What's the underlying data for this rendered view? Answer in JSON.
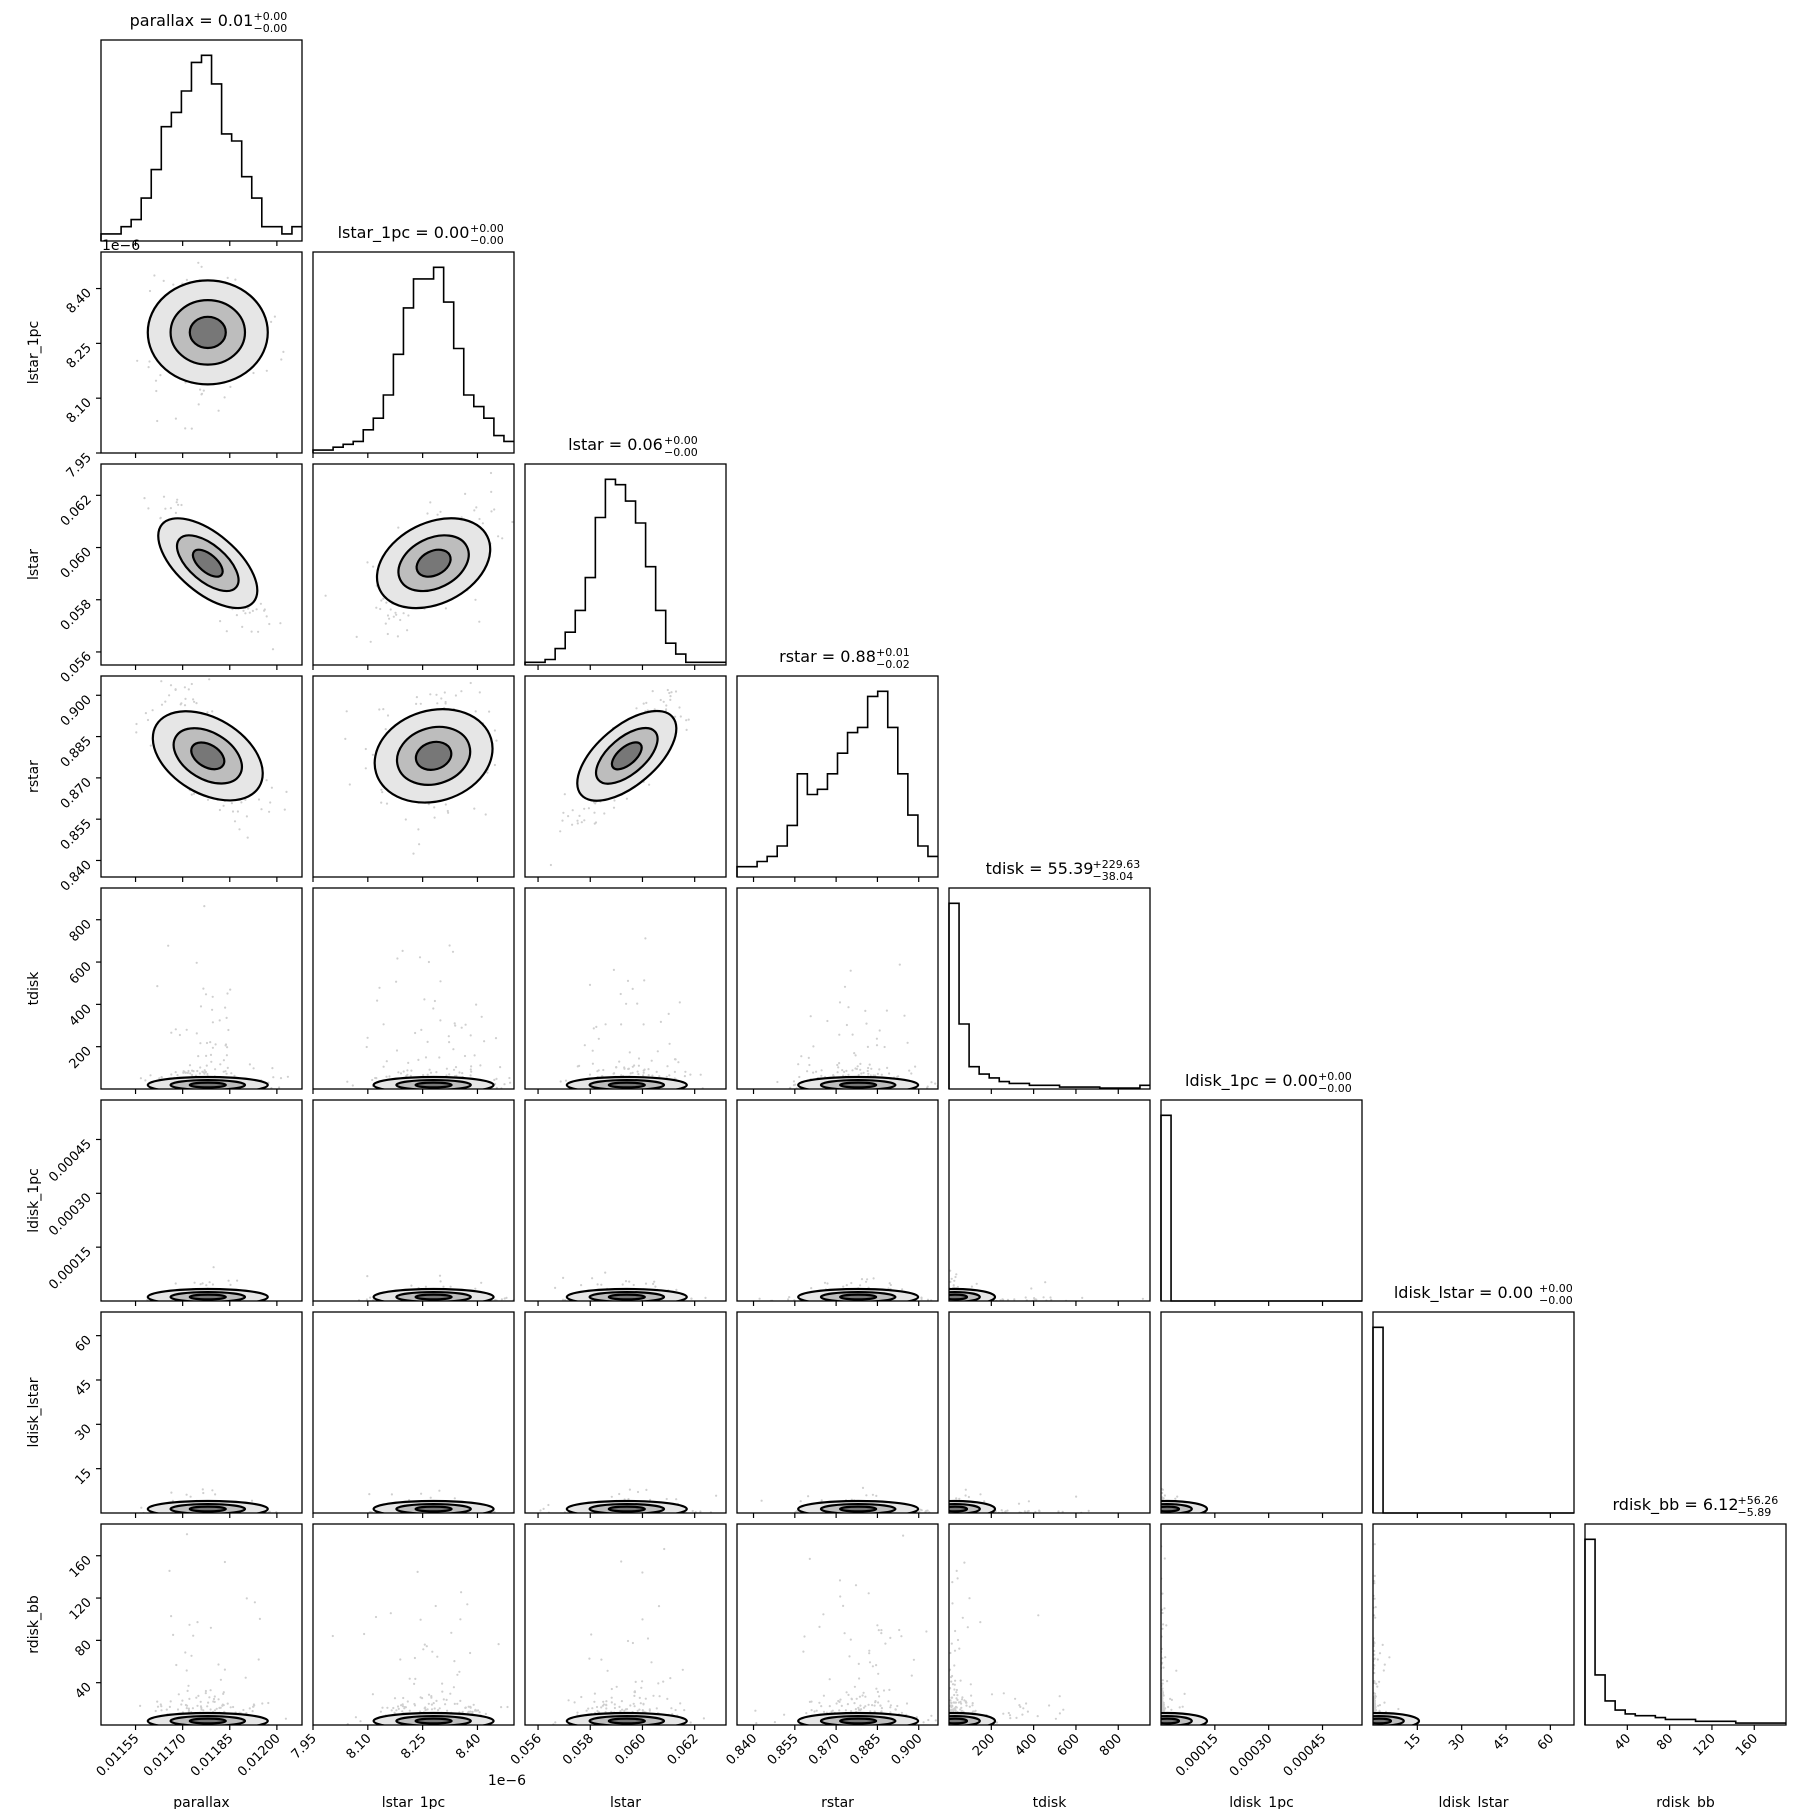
{
  "chart_data": {
    "type": "corner",
    "parameters": [
      "parallax",
      "lstar_1pc",
      "lstar",
      "rstar",
      "tdisk",
      "ldisk_1pc",
      "ldisk_lstar",
      "rdisk_bb"
    ],
    "titles": [
      {
        "param": "parallax",
        "text": "parallax = 0.01",
        "upper": "+0.00",
        "lower": "−0.00"
      },
      {
        "param": "lstar_1pc",
        "text": "lstar_1pc = 0.00",
        "upper": "+0.00",
        "lower": "−0.00"
      },
      {
        "param": "lstar",
        "text": "lstar = 0.06",
        "upper": "+0.00",
        "lower": "−0.00"
      },
      {
        "param": "rstar",
        "text": "rstar = 0.88",
        "upper": "+0.01",
        "lower": "−0.02"
      },
      {
        "param": "tdisk",
        "text": "tdisk = 55.39",
        "upper": "+229.63",
        "lower": "−38.04"
      },
      {
        "param": "ldisk_1pc",
        "text": "ldisk_1pc = 0.00",
        "upper": "+0.00",
        "lower": "−0.00"
      },
      {
        "param": "ldisk_lstar",
        "text": "ldisk_lstar = 0.00",
        "upper": "+0.00",
        "lower": "−0.00"
      },
      {
        "param": "rdisk_bb",
        "text": "rdisk_bb = 6.12",
        "upper": "+56.26",
        "lower": "−5.89"
      }
    ],
    "xlabels": [
      "parallax",
      "lstar_1pc",
      "lstar",
      "rstar",
      "tdisk",
      "ldisk_1pc",
      "ldisk_lstar",
      "rdisk_bb"
    ],
    "ylabels": [
      "lstar_1pc",
      "lstar",
      "rstar",
      "tdisk",
      "ldisk_1pc",
      "ldisk_lstar",
      "rdisk_bb"
    ],
    "xticks": [
      [
        "0.01155",
        "0.01170",
        "0.01185",
        "0.01200"
      ],
      [
        "7.95",
        "8.10",
        "8.25",
        "8.40"
      ],
      [
        "0.056",
        "0.058",
        "0.060",
        "0.062"
      ],
      [
        "0.840",
        "0.855",
        "0.870",
        "0.885",
        "0.900"
      ],
      [
        "200",
        "400",
        "600",
        "800"
      ],
      [
        "0.00015",
        "0.00030",
        "0.00045"
      ],
      [
        "15",
        "30",
        "45",
        "60"
      ],
      [
        "40",
        "80",
        "120",
        "160"
      ]
    ],
    "xtick_values": [
      [
        0.01155,
        0.0117,
        0.01185,
        0.012
      ],
      [
        7.95,
        8.1,
        8.25,
        8.4
      ],
      [
        0.056,
        0.058,
        0.06,
        0.062
      ],
      [
        0.84,
        0.855,
        0.87,
        0.885,
        0.9
      ],
      [
        200,
        400,
        600,
        800
      ],
      [
        0.00015,
        0.0003,
        0.00045
      ],
      [
        15,
        30,
        45,
        60
      ],
      [
        40,
        80,
        120,
        160
      ]
    ],
    "yticks": [
      [
        "7.95",
        "8.10",
        "8.25",
        "8.40"
      ],
      [
        "0.056",
        "0.058",
        "0.060",
        "0.062"
      ],
      [
        "0.840",
        "0.855",
        "0.870",
        "0.885",
        "0.900"
      ],
      [
        "200",
        "400",
        "600",
        "800"
      ],
      [
        "0.00015",
        "0.00030",
        "0.00045"
      ],
      [
        "15",
        "30",
        "45",
        "60"
      ],
      [
        "40",
        "80",
        "120",
        "160"
      ]
    ],
    "ranges": [
      [
        0.01144,
        0.01208
      ],
      [
        7.95,
        8.5
      ],
      [
        0.0555,
        0.0632
      ],
      [
        0.834,
        0.907
      ],
      [
        0,
        950
      ],
      [
        0,
        0.00056
      ],
      [
        0,
        68
      ],
      [
        0,
        190
      ]
    ],
    "offset_labels": {
      "y_lstar_1pc": "1e−6",
      "x_lstar_1pc": "1e−6"
    },
    "histograms": [
      [
        1,
        1,
        2,
        3,
        6,
        10,
        16,
        18,
        21,
        25,
        26,
        22,
        15,
        14,
        9,
        6,
        2,
        2,
        1,
        2
      ],
      [
        0.5,
        0.5,
        1,
        1.5,
        2,
        4,
        6,
        10,
        17,
        25,
        30,
        30,
        32,
        26,
        18,
        10,
        8,
        6,
        3,
        2
      ],
      [
        0.5,
        0.5,
        1,
        3,
        6,
        10,
        16,
        27,
        34,
        33,
        30,
        26,
        18,
        10,
        4,
        2,
        0.5,
        0.5,
        0.5,
        0.5
      ],
      [
        2,
        2,
        3,
        4,
        6,
        10,
        20,
        16,
        17,
        20,
        24,
        28,
        29,
        35,
        36,
        29,
        20,
        12,
        6,
        4
      ],
      [
        100,
        35,
        12,
        8,
        6,
        4,
        3,
        3,
        2,
        2,
        2,
        1,
        1,
        1,
        1,
        0.5,
        0.5,
        0.5,
        0.5,
        2
      ],
      [
        100,
        0,
        0,
        0,
        0,
        0,
        0,
        0,
        0,
        0,
        0,
        0,
        0,
        0,
        0,
        0,
        0,
        0,
        0,
        0
      ],
      [
        100,
        0,
        0,
        0,
        0,
        0,
        0,
        0,
        0,
        0,
        0,
        0,
        0,
        0,
        0,
        0,
        0,
        0,
        0,
        0
      ],
      [
        100,
        27,
        13,
        8,
        6,
        5,
        5,
        4,
        3,
        3,
        3,
        2,
        2,
        2,
        2,
        1,
        1,
        1,
        1,
        1
      ]
    ],
    "centers": [
      0.01178,
      8.28,
      0.0594,
      0.878,
      55.39,
      5e-06,
      0.1,
      6.12
    ],
    "spreads": [
      8.5e-05,
      0.085,
      0.0011,
      0.012,
      100,
      1.2e-05,
      1.2,
      30
    ],
    "correlations": {
      "1,0": 0.0,
      "2,0": -0.85,
      "2,1": 0.5,
      "3,0": -0.6,
      "3,1": 0.3,
      "3,2": 0.85
    }
  }
}
